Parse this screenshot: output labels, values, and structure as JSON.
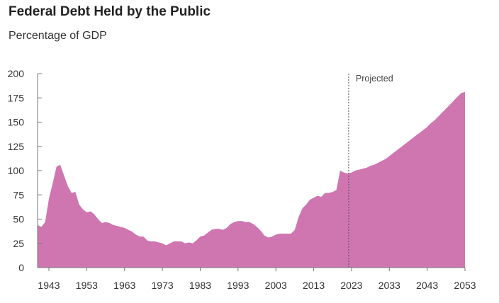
{
  "title": "Federal Debt Held by the Public",
  "subtitle": "Percentage of GDP",
  "colors": {
    "area": "#cf76b1",
    "axis": "#777777",
    "projection_line": "#555555"
  },
  "chart_data": {
    "type": "area",
    "title": "Federal Debt Held by the Public",
    "subtitle": "Percentage of GDP",
    "xlabel": "",
    "ylabel": "",
    "xlim": [
      1940,
      2053
    ],
    "ylim": [
      0,
      200
    ],
    "grid": false,
    "y_ticks": [
      0,
      25,
      50,
      75,
      100,
      125,
      150,
      175,
      200
    ],
    "x_ticks": [
      1943,
      1953,
      1963,
      1973,
      1983,
      1993,
      2003,
      2013,
      2023,
      2033,
      2043,
      2053
    ],
    "projection": {
      "start_year": 2023,
      "label": "Projected"
    },
    "x": [
      1940,
      1941,
      1942,
      1943,
      1944,
      1945,
      1946,
      1947,
      1948,
      1949,
      1950,
      1951,
      1952,
      1953,
      1954,
      1955,
      1956,
      1957,
      1958,
      1959,
      1960,
      1961,
      1962,
      1963,
      1964,
      1965,
      1966,
      1967,
      1968,
      1969,
      1970,
      1971,
      1972,
      1973,
      1974,
      1975,
      1976,
      1977,
      1978,
      1979,
      1980,
      1981,
      1982,
      1983,
      1984,
      1985,
      1986,
      1987,
      1988,
      1989,
      1990,
      1991,
      1992,
      1993,
      1994,
      1995,
      1996,
      1997,
      1998,
      1999,
      2000,
      2001,
      2002,
      2003,
      2004,
      2005,
      2006,
      2007,
      2008,
      2009,
      2010,
      2011,
      2012,
      2013,
      2014,
      2015,
      2016,
      2017,
      2018,
      2019,
      2020,
      2021,
      2022,
      2023,
      2024,
      2025,
      2026,
      2027,
      2028,
      2029,
      2030,
      2031,
      2032,
      2033,
      2034,
      2035,
      2036,
      2037,
      2038,
      2039,
      2040,
      2041,
      2042,
      2043,
      2044,
      2045,
      2046,
      2047,
      2048,
      2049,
      2050,
      2051,
      2052,
      2053
    ],
    "values": [
      44,
      42,
      47,
      71,
      87,
      104,
      106,
      95,
      84,
      77,
      78,
      65,
      60,
      57,
      58,
      55,
      50,
      46,
      47,
      46,
      44,
      43,
      42,
      41,
      39,
      37,
      34,
      32,
      32,
      28,
      27,
      27,
      26,
      25,
      23,
      25,
      27,
      27,
      27,
      25,
      26,
      25,
      28,
      32,
      33,
      36,
      39,
      40,
      40,
      39,
      41,
      45,
      47,
      48,
      48,
      47,
      47,
      45,
      42,
      38,
      33,
      31,
      32,
      34,
      35,
      35,
      35,
      35,
      39,
      52,
      61,
      65,
      70,
      72,
      74,
      73,
      77,
      77,
      78,
      80,
      100,
      98,
      97,
      98,
      100,
      101,
      102,
      103,
      105,
      106,
      108,
      110,
      112,
      115,
      118,
      121,
      124,
      127,
      130,
      133,
      136,
      139,
      142,
      145,
      149,
      152,
      156,
      160,
      164,
      168,
      172,
      176,
      180,
      181
    ]
  }
}
